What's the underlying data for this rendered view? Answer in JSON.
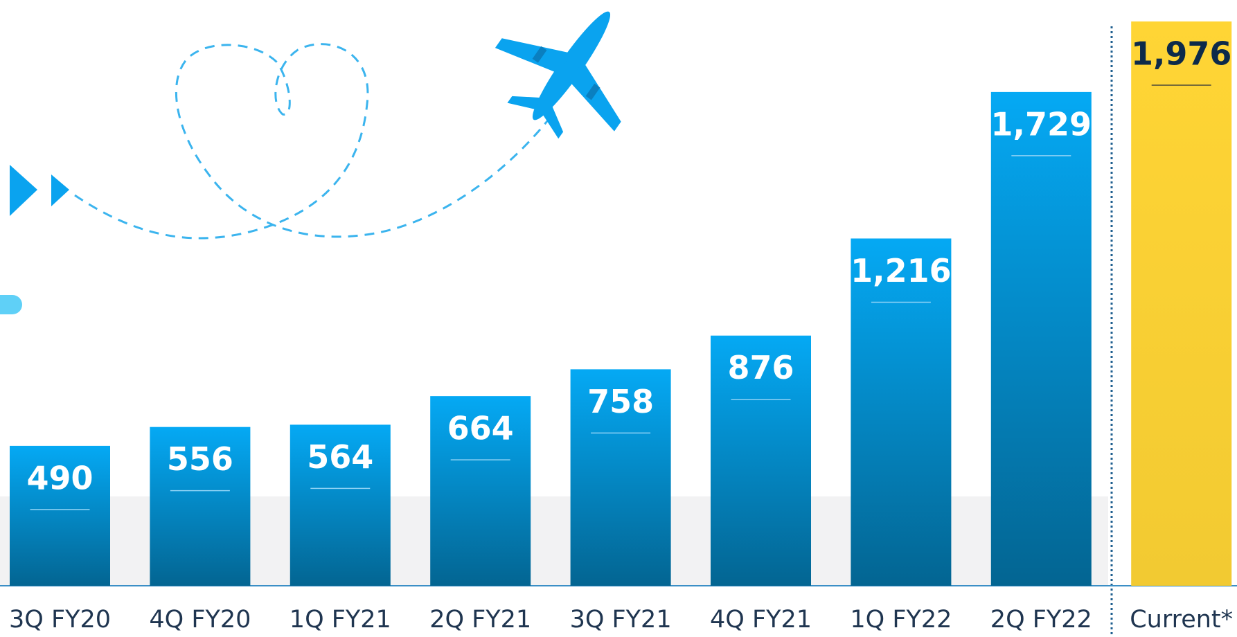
{
  "chart_data": {
    "type": "bar",
    "categories": [
      "3Q FY20",
      "4Q FY20",
      "1Q FY21",
      "2Q FY21",
      "3Q FY21",
      "4Q FY21",
      "1Q FY22",
      "2Q FY22",
      "Current*"
    ],
    "values": [
      490,
      556,
      564,
      664,
      758,
      876,
      1216,
      1729,
      1976
    ],
    "value_labels": [
      "490",
      "556",
      "564",
      "664",
      "758",
      "876",
      "1,216",
      "1,729",
      "1,976"
    ],
    "colors": [
      "#05a9f4",
      "#05a9f4",
      "#05a9f4",
      "#05a9f4",
      "#05a9f4",
      "#05a9f4",
      "#05a9f4",
      "#05a9f4",
      "#ffd535"
    ]
  }
}
